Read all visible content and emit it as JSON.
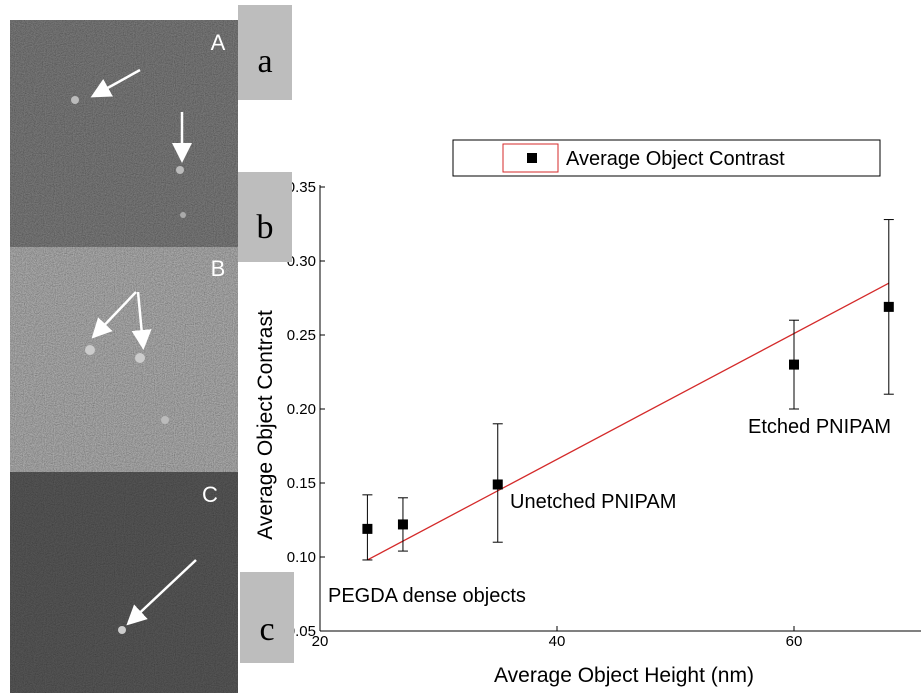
{
  "panels": {
    "image_labels": [
      "A",
      "B",
      "C"
    ],
    "box_labels": [
      "a",
      "b",
      "c"
    ]
  },
  "chart_data": {
    "type": "scatter",
    "xlabel": "Average Object Height (nm)",
    "ylabel": "Average Object Contrast",
    "xlim": [
      20,
      70
    ],
    "ylim": [
      0.05,
      0.35
    ],
    "xticks": [
      20,
      40,
      60
    ],
    "yticks": [
      {
        "value": 0.05,
        "label": "0.05"
      },
      {
        "value": 0.1,
        "label": "0.10"
      },
      {
        "value": 0.15,
        "label": "0.15"
      },
      {
        "value": 0.2,
        "label": "0.20"
      },
      {
        "value": 0.25,
        "label": "0.25"
      },
      {
        "value": 0.3,
        "label": "0.30"
      },
      {
        "value": 0.35,
        "label": "0.35"
      }
    ],
    "series": [
      {
        "name": "Average Object Contrast",
        "color": "#000000",
        "x": [
          24,
          27,
          35,
          60,
          68
        ],
        "values": [
          0.119,
          0.122,
          0.149,
          0.23,
          0.269
        ],
        "err_low": [
          0.098,
          0.104,
          0.11,
          0.2,
          0.21
        ],
        "err_high": [
          0.142,
          0.14,
          0.19,
          0.26,
          0.328
        ]
      }
    ],
    "fit": {
      "color": "#d42a2a",
      "x": [
        24,
        68
      ],
      "values": [
        0.098,
        0.285
      ]
    },
    "legend_border": "#d42a2a",
    "annotations": [
      "PEGDA dense objects",
      "Unetched PNIPAM",
      "Etched PNIPAM"
    ]
  }
}
